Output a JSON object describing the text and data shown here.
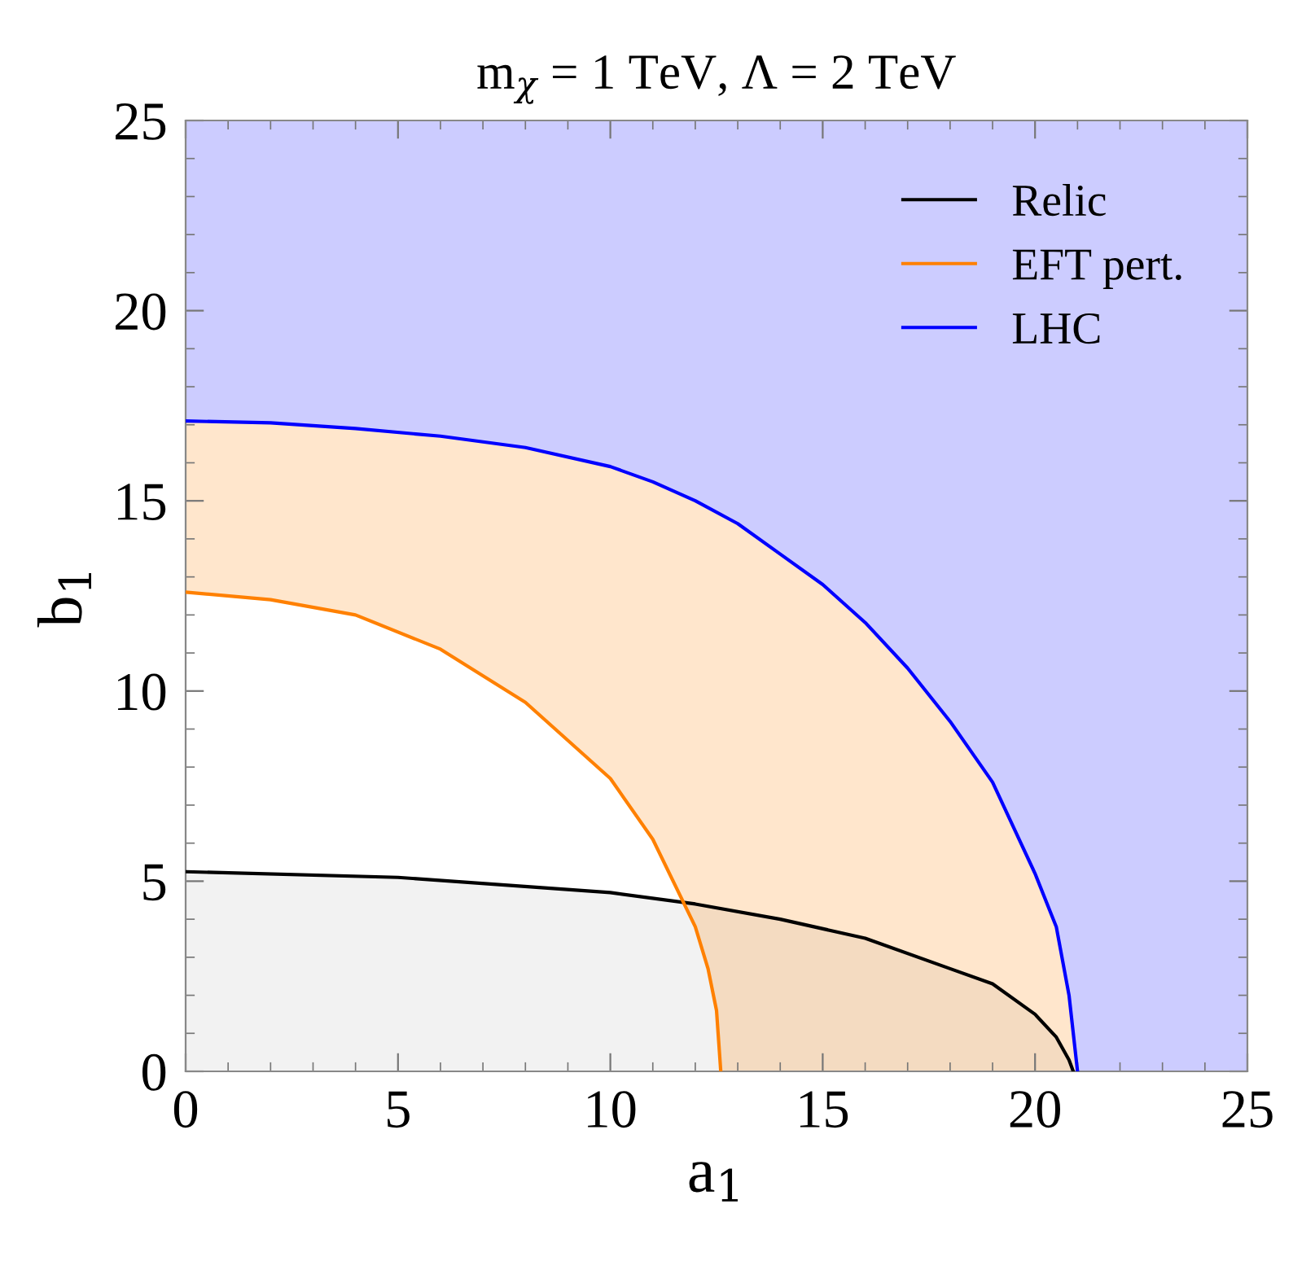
{
  "chart_data": {
    "type": "line",
    "title": "m$_{χ}$ = 1 TeV, Λ = 2 TeV",
    "xlabel": "a$_{1}$",
    "ylabel": "b$_{1}$",
    "xlim": [
      0,
      25
    ],
    "ylim": [
      0,
      25
    ],
    "xticks": [
      0,
      5,
      10,
      15,
      20,
      25
    ],
    "yticks": [
      0,
      5,
      10,
      15,
      20,
      25
    ],
    "grid": false,
    "legend": "top right",
    "series": [
      {
        "name": "Relic",
        "type": "area",
        "color": "#000000",
        "x": [
          0,
          5,
          10,
          12,
          14,
          16,
          18,
          19,
          20,
          20.5,
          20.8,
          20.9
        ],
        "values": [
          5.25,
          5.1,
          4.7,
          4.4,
          4.0,
          3.5,
          2.7,
          2.3,
          1.5,
          0.9,
          0.3,
          0
        ]
      },
      {
        "name": "EFT pert.",
        "color": "#ff8000",
        "x": [
          0,
          2,
          4,
          6,
          8,
          10,
          11,
          12,
          12.3,
          12.5,
          12.6,
          13,
          14,
          15,
          16,
          17,
          18,
          19,
          20,
          20.5,
          20.8,
          21
        ],
        "values": [
          12.6,
          12.4,
          12.0,
          11.1,
          9.7,
          7.7,
          6.1,
          3.8,
          2.7,
          1.6,
          0,
          null,
          null,
          null,
          null,
          null,
          null,
          null,
          null,
          null,
          null,
          null
        ],
        "lower": [
          12.6,
          12.4,
          12.0,
          11.1,
          9.7,
          7.7,
          6.1,
          3.8,
          2.7,
          1.6,
          0,
          0,
          0,
          0,
          0,
          0,
          0,
          0,
          0,
          0,
          0,
          0
        ],
        "upper": [
          17.1,
          17.05,
          16.9,
          16.7,
          16.4,
          15.9,
          15.5,
          15.0,
          14.85,
          14.75,
          14.7,
          14.4,
          13.6,
          12.8,
          11.8,
          10.6,
          9.2,
          7.6,
          5.2,
          3.8,
          2.0,
          0
        ]
      },
      {
        "name": "LHC",
        "color": "#0000ff",
        "x": [
          0,
          2,
          4,
          6,
          8,
          10,
          11,
          12,
          13,
          14,
          15,
          16,
          17,
          18,
          19,
          20,
          20.5,
          20.8,
          21,
          25
        ],
        "values": [
          17.1,
          17.05,
          16.9,
          16.7,
          16.4,
          15.9,
          15.5,
          15.0,
          14.4,
          13.6,
          12.8,
          11.8,
          10.6,
          9.2,
          7.6,
          5.2,
          3.8,
          2.0,
          0,
          null
        ],
        "lower": [
          17.1,
          17.05,
          16.9,
          16.7,
          16.4,
          15.9,
          15.5,
          15.0,
          14.4,
          13.6,
          12.8,
          11.8,
          10.6,
          9.2,
          7.6,
          5.2,
          3.8,
          2.0,
          0,
          0
        ],
        "upper": [
          25,
          25,
          25,
          25,
          25,
          25,
          25,
          25,
          25,
          25,
          25,
          25,
          25,
          25,
          25,
          25,
          25,
          25,
          25,
          25
        ]
      }
    ]
  }
}
